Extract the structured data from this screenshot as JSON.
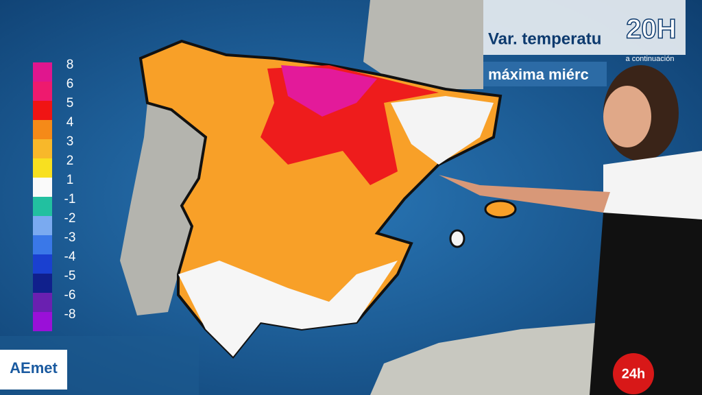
{
  "header": {
    "title": "Var. temperatu",
    "logo": "20H",
    "note": "a continuación",
    "subtitle": "máxima miérc"
  },
  "legend": {
    "items": [
      {
        "value": 8,
        "color": "#e0168e"
      },
      {
        "value": 6,
        "color": "#ee1a6e"
      },
      {
        "value": 5,
        "color": "#f01414"
      },
      {
        "value": 4,
        "color": "#f58a18"
      },
      {
        "value": 3,
        "color": "#f8b82a"
      },
      {
        "value": 2,
        "color": "#f8e020"
      },
      {
        "value": 1,
        "color": "#fafafa"
      },
      {
        "value": -1,
        "color": "#22c0a0"
      },
      {
        "value": -2,
        "color": "#7aaaf0"
      },
      {
        "value": -3,
        "color": "#3a78e8"
      },
      {
        "value": -4,
        "color": "#1a40d0"
      },
      {
        "value": -5,
        "color": "#10208c"
      },
      {
        "value": -6,
        "color": "#6a20b0"
      },
      {
        "value": -8,
        "color": "#9a10d8"
      }
    ]
  },
  "logos": {
    "agency": "AEmet",
    "channel": "24h"
  }
}
